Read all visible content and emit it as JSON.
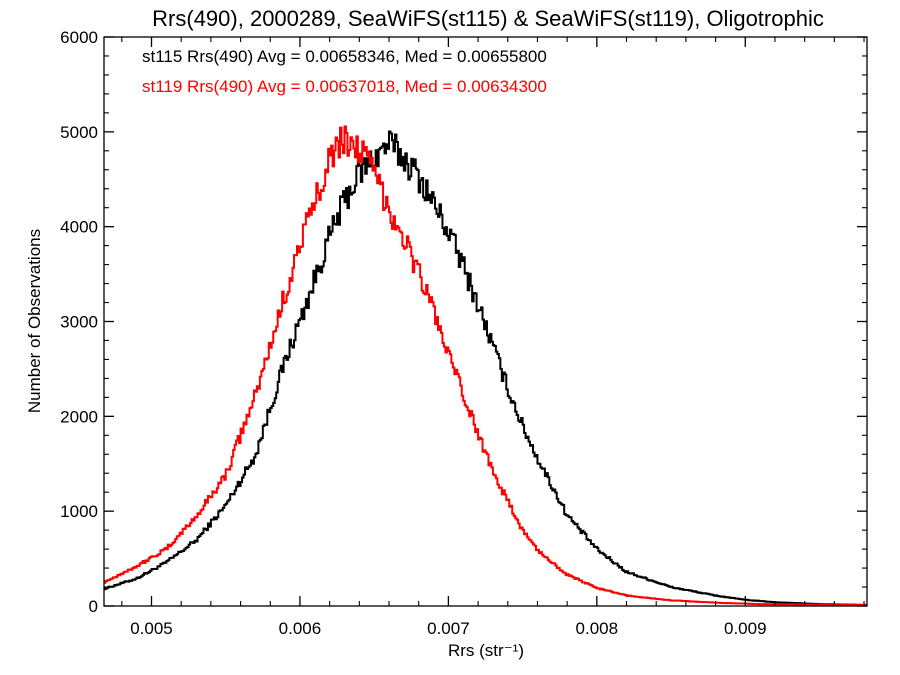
{
  "chart_data": {
    "type": "line",
    "style": "step-histogram",
    "title": "Rrs(490), 2000289, SeaWiFS(st115) & SeaWiFS(st119), Oligotrophic",
    "xlabel": "Rrs (str⁻¹)",
    "ylabel": "Number of Observations",
    "xlim": [
      0.00468,
      0.00982
    ],
    "ylim": [
      0,
      6000
    ],
    "xticks": [
      0.005,
      0.006,
      0.007,
      0.008,
      0.009
    ],
    "xtick_labels": [
      "0.005",
      "0.006",
      "0.007",
      "0.008",
      "0.009"
    ],
    "yticks": [
      0,
      1000,
      2000,
      3000,
      4000,
      5000,
      6000
    ],
    "ytick_labels": [
      "0",
      "1000",
      "2000",
      "3000",
      "4000",
      "5000",
      "6000"
    ],
    "annotations": [
      {
        "text": "st115 Rrs(490) Avg = 0.00658346, Med = 0.00655800",
        "color": "#000000"
      },
      {
        "text": "st119 Rrs(490) Avg = 0.00637018, Med = 0.00634300",
        "color": "#ff0000"
      }
    ],
    "series": [
      {
        "name": "st115",
        "color": "#000000",
        "x": [
          0.00468,
          0.0049,
          0.0051,
          0.0053,
          0.0055,
          0.0057,
          0.0059,
          0.00605,
          0.0062,
          0.0063,
          0.0064,
          0.00655,
          0.0066,
          0.0067,
          0.0068,
          0.0069,
          0.007,
          0.0071,
          0.0072,
          0.0073,
          0.0074,
          0.0075,
          0.0076,
          0.0078,
          0.008,
          0.0082,
          0.0085,
          0.0088,
          0.009,
          0.0092,
          0.0095,
          0.00982
        ],
        "values": [
          180,
          290,
          460,
          690,
          1060,
          1590,
          2580,
          3220,
          3890,
          4270,
          4560,
          4800,
          4880,
          4720,
          4530,
          4250,
          3950,
          3590,
          3180,
          2740,
          2300,
          1900,
          1560,
          960,
          600,
          360,
          200,
          110,
          65,
          40,
          20,
          12
        ]
      },
      {
        "name": "st119",
        "color": "#ff0000",
        "x": [
          0.00468,
          0.0049,
          0.0051,
          0.0053,
          0.0055,
          0.0057,
          0.0058,
          0.0059,
          0.006,
          0.0061,
          0.0062,
          0.0063,
          0.0064,
          0.0065,
          0.0066,
          0.0067,
          0.0068,
          0.0069,
          0.007,
          0.0071,
          0.0072,
          0.0073,
          0.0074,
          0.0075,
          0.0076,
          0.0078,
          0.008,
          0.0082,
          0.0085,
          0.0088,
          0.0091,
          0.00982
        ],
        "values": [
          250,
          420,
          600,
          940,
          1380,
          2220,
          2740,
          3290,
          3810,
          4250,
          4760,
          4920,
          4830,
          4560,
          4200,
          3880,
          3520,
          3130,
          2640,
          2230,
          1810,
          1440,
          1100,
          800,
          590,
          330,
          190,
          110,
          60,
          35,
          20,
          10
        ]
      }
    ]
  }
}
